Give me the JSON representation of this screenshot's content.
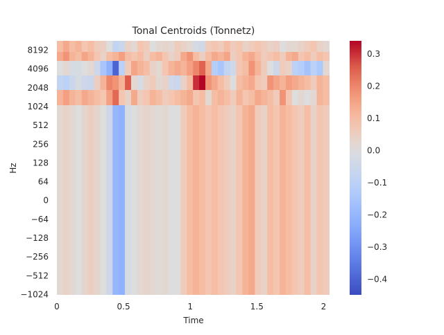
{
  "chart_data": {
    "type": "heatmap",
    "title": "Tonal Centroids (Tonnetz)",
    "xlabel": "Time",
    "ylabel": "Hz",
    "xlim": [
      0,
      2.05
    ],
    "x_ticks": [
      {
        "value": 0,
        "label": "0"
      },
      {
        "value": 0.5,
        "label": "0.5"
      },
      {
        "value": 1,
        "label": "1"
      },
      {
        "value": 1.5,
        "label": "1.5"
      },
      {
        "value": 2,
        "label": "2"
      }
    ],
    "y_tick_labels": [
      "8192",
      "4096",
      "2048",
      "1024",
      "512",
      "256",
      "128",
      "64",
      "0",
      "−64",
      "−128",
      "−256",
      "−512",
      "−1024"
    ],
    "colormap": "coolwarm",
    "vmin": -0.45,
    "vmax": 0.34,
    "colorbar_ticks": [
      {
        "value": 0.3,
        "label": "0.3"
      },
      {
        "value": 0.2,
        "label": "0.2"
      },
      {
        "value": 0.1,
        "label": "0.1"
      },
      {
        "value": 0.0,
        "label": "0.0"
      },
      {
        "value": -0.1,
        "label": "−0.1"
      },
      {
        "value": -0.2,
        "label": "−0.2"
      },
      {
        "value": -0.3,
        "label": "−0.3"
      },
      {
        "value": -0.4,
        "label": "−0.4"
      }
    ],
    "time_step": 0.0464,
    "rows": [
      [
        0.1,
        0.14,
        0.1,
        0.12,
        0.08,
        0.1,
        0.06,
        0.05,
        0.0,
        -0.08,
        -0.06,
        0.04,
        0.02,
        0.08,
        0.06,
        0.0,
        0.02,
        0.03,
        0.02,
        0.06,
        0.04,
        0.02,
        -0.03,
        -0.04,
        0.06,
        0.08,
        0.06,
        0.1,
        0.06,
        0.08,
        0.04,
        0.06,
        0.08,
        0.06,
        0.04,
        0.05,
        0.0,
        0.02,
        0.02,
        0.04,
        0.06,
        0.08,
        0.04,
        0.02
      ],
      [
        0.14,
        0.18,
        0.12,
        0.1,
        0.15,
        0.12,
        0.08,
        0.04,
        0.1,
        0.12,
        0.16,
        0.1,
        0.08,
        0.1,
        0.05,
        0.1,
        0.12,
        0.08,
        0.04,
        0.06,
        0.14,
        0.18,
        0.1,
        0.05,
        0.1,
        0.14,
        0.12,
        0.15,
        0.05,
        0.08,
        0.12,
        0.14,
        0.1,
        0.06,
        0.08,
        0.1,
        0.06,
        0.12,
        0.14,
        0.08,
        0.1,
        0.06,
        0.1,
        0.08
      ],
      [
        0.0,
        0.02,
        -0.02,
        -0.02,
        0.0,
        0.02,
        -0.05,
        -0.15,
        -0.22,
        -0.4,
        -0.1,
        0.06,
        0.15,
        0.12,
        0.1,
        0.04,
        0.02,
        0.08,
        0.12,
        0.14,
        0.12,
        0.16,
        0.2,
        0.25,
        0.14,
        -0.12,
        -0.15,
        -0.08,
        -0.04,
        0.08,
        0.1,
        0.18,
        0.12,
        0.06,
        0.0,
        -0.05,
        0.06,
        0.04,
        -0.1,
        -0.12,
        -0.16,
        -0.1,
        -0.14,
        0.02
      ],
      [
        -0.08,
        -0.1,
        -0.06,
        -0.02,
        -0.05,
        -0.06,
        0.05,
        0.12,
        0.2,
        0.18,
        0.12,
        0.26,
        0.02,
        -0.02,
        0.04,
        0.06,
        0.02,
        0.04,
        -0.04,
        -0.06,
        0.04,
        0.1,
        0.3,
        0.34,
        0.18,
        0.14,
        0.1,
        0.06,
        0.0,
        0.1,
        0.12,
        0.14,
        0.08,
        0.06,
        0.18,
        0.15,
        0.12,
        0.16,
        0.14,
        0.12,
        0.1,
        0.06,
        0.12,
        0.1
      ],
      [
        0.12,
        0.16,
        0.12,
        0.1,
        0.14,
        0.12,
        0.1,
        0.08,
        0.16,
        0.24,
        0.08,
        0.04,
        0.14,
        0.06,
        0.08,
        0.12,
        0.1,
        0.06,
        0.08,
        0.1,
        0.12,
        0.14,
        0.08,
        0.1,
        0.02,
        0.1,
        0.12,
        0.1,
        0.06,
        0.12,
        0.08,
        0.1,
        0.14,
        0.12,
        0.1,
        0.06,
        0.18,
        0.08,
        0.0,
        0.02,
        0.0,
        0.02,
        0.12,
        0.1
      ],
      [
        0.02,
        0.04,
        0.02,
        0.0,
        0.03,
        0.05,
        0.03,
        0.0,
        -0.05,
        -0.2,
        -0.22,
        -0.02,
        0.0,
        0.02,
        0.03,
        0.02,
        0.01,
        0.02,
        0.0,
        0.0,
        0.06,
        0.1,
        0.12,
        0.1,
        0.08,
        0.1,
        0.08,
        0.06,
        0.04,
        0.08,
        0.12,
        0.14,
        0.06,
        0.04,
        0.1,
        0.08,
        0.12,
        0.1,
        0.08,
        0.06,
        0.1,
        0.04,
        0.08,
        0.06
      ]
    ]
  }
}
